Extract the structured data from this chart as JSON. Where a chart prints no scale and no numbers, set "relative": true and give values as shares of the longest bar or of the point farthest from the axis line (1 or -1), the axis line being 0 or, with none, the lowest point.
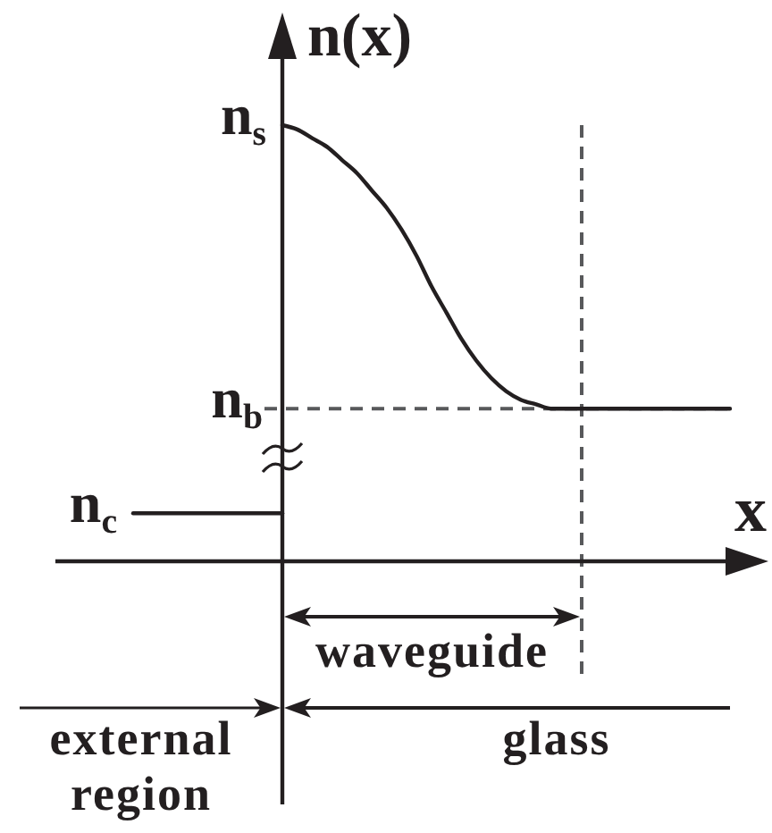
{
  "chart_data": {
    "type": "line",
    "relative": true,
    "xlabel": "x",
    "ylabel": "n(x)",
    "line_style": "solid",
    "categories": [
      null,
      null,
      null,
      null,
      null,
      null,
      null,
      null,
      null,
      null,
      null,
      null,
      null,
      null,
      null,
      null,
      null,
      null,
      null,
      null,
      null,
      null,
      null,
      null,
      null,
      null,
      null,
      null,
      null,
      null,
      null,
      null,
      null,
      null,
      null,
      null,
      null,
      null,
      null,
      null,
      null
    ],
    "series": [
      {
        "color": "#231f20",
        "values": [
          0.11,
          0.11,
          0.11,
          0.11,
          0.11,
          0.11,
          0.11,
          0.11,
          0.11,
          0.11,
          0.11,
          null,
          null,
          null,
          null,
          null,
          null,
          null,
          null,
          null,
          null,
          null,
          null,
          null,
          null,
          null,
          null,
          null,
          null,
          null,
          null,
          null,
          null,
          null,
          null,
          null,
          null,
          null,
          null,
          null,
          null
        ]
      },
      {
        "color": "#231f20",
        "values": [
          null,
          null,
          null,
          null,
          null,
          null,
          null,
          null,
          null,
          null,
          1,
          0.99,
          0.97,
          0.95,
          0.92,
          0.89,
          0.85,
          0.81,
          0.76,
          0.7,
          0.63,
          0.57,
          0.51,
          0.46,
          0.42,
          0.39,
          0.37,
          0.36,
          0.35,
          0.35,
          0.35,
          0.35,
          0.35,
          0.35,
          0.35,
          0.35,
          0.35,
          0.35,
          0.35,
          0.35,
          0.35
        ]
      }
    ],
    "ref_lines": [
      {
        "axis": "y",
        "value": 0.35,
        "label": "n$_{b}$",
        "line_style": "dashed",
        "color": "#58595b"
      }
    ],
    "annotations": [
      "n$_{s}$",
      "n$_{c}$",
      "waveguide",
      "external region",
      "glass"
    ]
  }
}
